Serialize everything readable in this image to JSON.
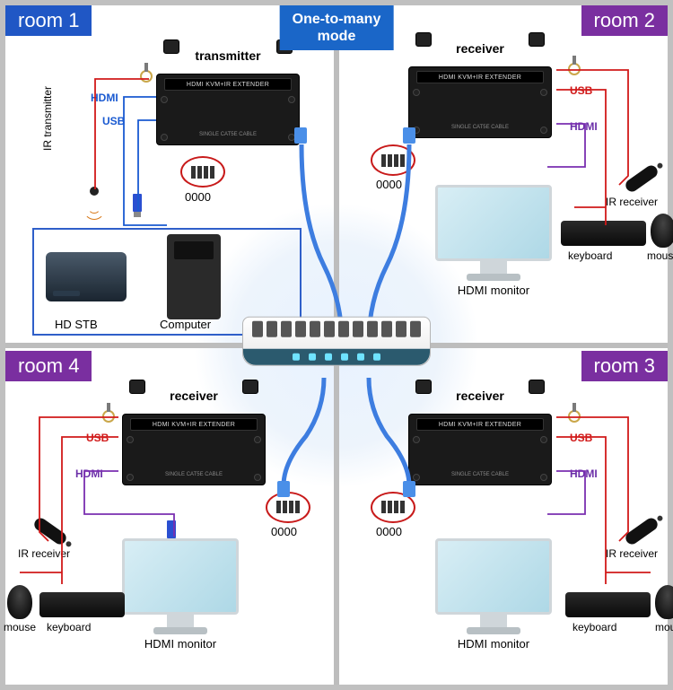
{
  "mode_title": "One-to-many\nmode",
  "center_label": "router or switch",
  "ext_bar_text": "HDMI KVM+IR EXTENDER",
  "ext_sub_text": "SINGLE CAT5E CABLE",
  "rooms": {
    "r1": {
      "name": "room 1",
      "color": "#2057c5",
      "role": "transmitter"
    },
    "r2": {
      "name": "room 2",
      "color": "#7a2fa0",
      "role": "receiver"
    },
    "r3": {
      "name": "room 3",
      "color": "#7a2fa0",
      "role": "receiver"
    },
    "r4": {
      "name": "room 4",
      "color": "#7a2fa0",
      "role": "receiver"
    }
  },
  "labels": {
    "hdmi": "HDMI",
    "usb": "USB",
    "dip": "0000",
    "monitor": "HDMI monitor",
    "keyboard": "keyboard",
    "mouse": "mouse",
    "mouse_cut": "mou",
    "ir_rx": "IR receiver",
    "ir_tx": "IR transmitter",
    "stb": "HD STB",
    "pc": "Computer"
  },
  "bg_cross_color": "#bdbdbd",
  "halo_color": "#e8f2ff"
}
